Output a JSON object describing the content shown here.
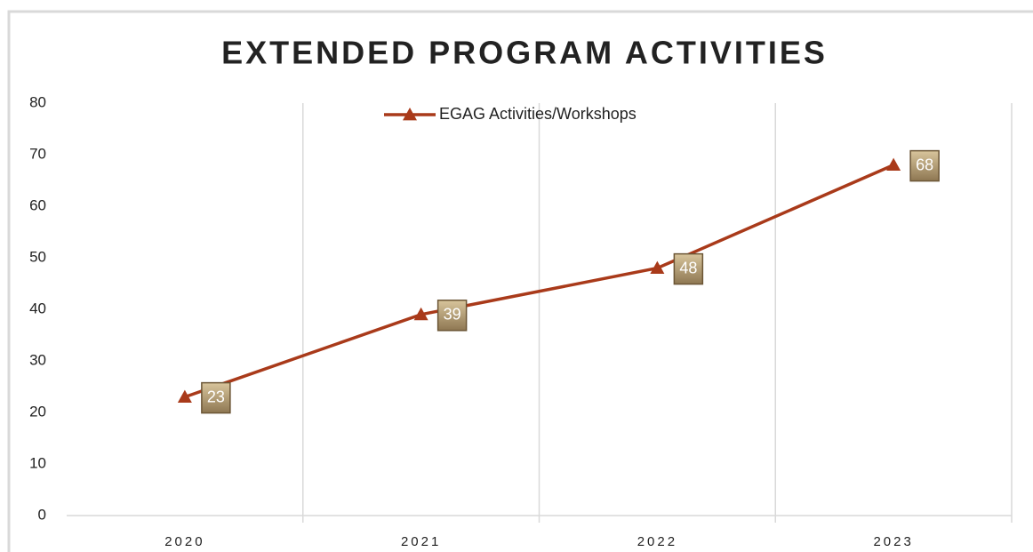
{
  "chart_data": {
    "type": "line",
    "title": "EXTENDED PROGRAM ACTIVITIES",
    "categories": [
      "2020",
      "2021",
      "2022",
      "2023"
    ],
    "series": [
      {
        "name": "EGAG Activities/Workshops",
        "color": "#a93a1a",
        "values": [
          23,
          39,
          48,
          68
        ]
      }
    ],
    "ylim": [
      0,
      80
    ],
    "yticks": [
      0,
      10,
      20,
      30,
      40,
      50,
      60,
      70,
      80
    ],
    "legend": "top",
    "data_labels": true
  }
}
